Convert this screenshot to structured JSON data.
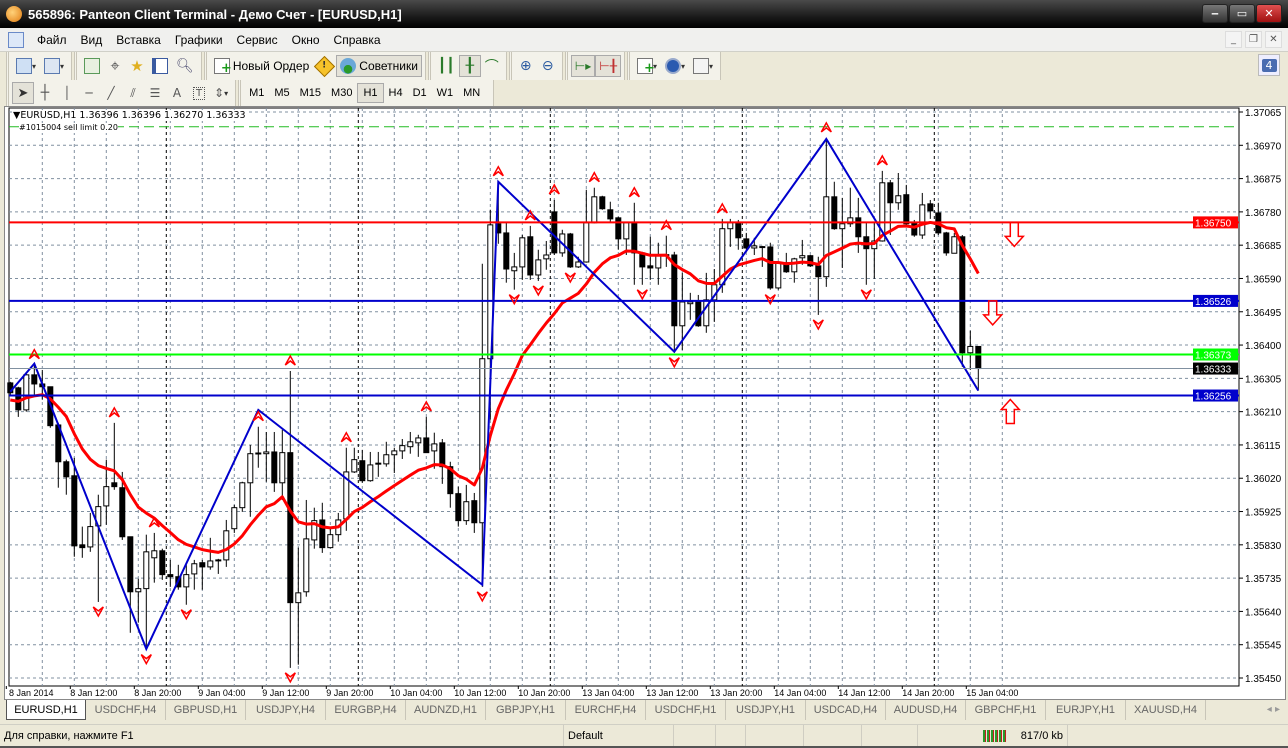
{
  "window": {
    "title": "565896: Panteon Client Terminal - Демо Счет - [EURUSD,H1]"
  },
  "menu": [
    "Файл",
    "Вид",
    "Вставка",
    "Графики",
    "Сервис",
    "Окно",
    "Справка"
  ],
  "toolbar": {
    "new_order": "Новый Ордер",
    "experts": "Советники",
    "notifications": "4",
    "timeframes": [
      "M1",
      "M5",
      "M15",
      "M30",
      "H1",
      "H4",
      "D1",
      "W1",
      "MN"
    ],
    "active_timeframe": "H1"
  },
  "chart": {
    "header": "EURUSD,H1  1.36396 1.36396 1.36270 1.36333",
    "order_label": "#1015004 sell limit 0.20",
    "symbol": "EURUSD",
    "timeframe": "H1",
    "colors": {
      "bull_body": "#ffffff",
      "bear_body": "#000000",
      "ma": "#ff0000",
      "zigzag": "#0000cc",
      "grid": "#8090a0",
      "fractal": "#ff0000"
    },
    "price_axis": [
      "1.37065",
      "1.36970",
      "1.36875",
      "1.36780",
      "1.36685",
      "1.36590",
      "1.36495",
      "1.36400",
      "1.36305",
      "1.36210",
      "1.36115",
      "1.36020",
      "1.35925",
      "1.35830",
      "1.35735",
      "1.35640",
      "1.35545",
      "1.35450"
    ],
    "price_range": [
      1.3545,
      1.37065
    ],
    "time_axis": [
      {
        "bar": 0,
        "label": "8 Jan 2014"
      },
      {
        "bar": 8,
        "label": "8 Jan 12:00"
      },
      {
        "bar": 16,
        "label": "8 Jan 20:00"
      },
      {
        "bar": 24,
        "label": "9 Jan 04:00"
      },
      {
        "bar": 32,
        "label": "9 Jan 12:00"
      },
      {
        "bar": 40,
        "label": "9 Jan 20:00"
      },
      {
        "bar": 48,
        "label": "10 Jan 04:00"
      },
      {
        "bar": 56,
        "label": "10 Jan 12:00"
      },
      {
        "bar": 64,
        "label": "10 Jan 20:00"
      },
      {
        "bar": 72,
        "label": "13 Jan 04:00"
      },
      {
        "bar": 80,
        "label": "13 Jan 12:00"
      },
      {
        "bar": 88,
        "label": "13 Jan 20:00"
      },
      {
        "bar": 96,
        "label": "14 Jan 04:00"
      },
      {
        "bar": 104,
        "label": "14 Jan 12:00"
      },
      {
        "bar": 112,
        "label": "14 Jan 20:00"
      },
      {
        "bar": 120,
        "label": "15 Jan 04:00"
      }
    ],
    "day_separators": [
      20,
      44,
      68,
      92,
      116
    ],
    "levels": [
      {
        "price": 1.3675,
        "label": "1.36750",
        "color": "#ff0000",
        "text": "#ffffff"
      },
      {
        "price": 1.36526,
        "label": "1.36526",
        "color": "#0000cc",
        "text": "#ffffff"
      },
      {
        "price": 1.36373,
        "label": "1.36373",
        "color": "#00ff00",
        "text": "#ffffff"
      },
      {
        "price": 1.36333,
        "label": "1.36333",
        "color": "#000000",
        "text": "#ffffff",
        "line": "#8090a0"
      },
      {
        "price": 1.36256,
        "label": "1.36256",
        "color": "#0000cc",
        "text": "#ffffff"
      }
    ],
    "order_line": {
      "price": 1.37023,
      "color": "#22bb22"
    },
    "ohlc": [
      [
        1.36292,
        1.36295,
        1.36258,
        1.36264
      ],
      [
        1.36278,
        1.36281,
        1.36195,
        1.36215
      ],
      [
        1.36215,
        1.36321,
        1.3621,
        1.36315
      ],
      [
        1.36315,
        1.36344,
        1.36258,
        1.36289
      ],
      [
        1.36289,
        1.36329,
        1.36244,
        1.36281
      ],
      [
        1.36281,
        1.36281,
        1.36164,
        1.3617
      ],
      [
        1.36172,
        1.36178,
        1.35993,
        1.36067
      ],
      [
        1.36067,
        1.36073,
        1.35973,
        1.36024
      ],
      [
        1.36027,
        1.36078,
        1.35796,
        1.35827
      ],
      [
        1.3583,
        1.35882,
        1.35793,
        1.35822
      ],
      [
        1.35824,
        1.35921,
        1.3581,
        1.35882
      ],
      [
        1.35884,
        1.35973,
        1.35667,
        1.35939
      ],
      [
        1.35941,
        1.36073,
        1.35887,
        1.35996
      ],
      [
        1.36007,
        1.36178,
        1.35987,
        1.35996
      ],
      [
        1.35993,
        1.36038,
        1.35844,
        1.35853
      ],
      [
        1.35853,
        1.35853,
        1.35579,
        1.35696
      ],
      [
        1.35696,
        1.35733,
        1.35608,
        1.35705
      ],
      [
        1.35705,
        1.35859,
        1.35531,
        1.3581
      ],
      [
        1.35793,
        1.35864,
        1.35722,
        1.35813
      ],
      [
        1.35813,
        1.35819,
        1.3573,
        1.35745
      ],
      [
        1.35745,
        1.35787,
        1.3571,
        1.35739
      ],
      [
        1.35739,
        1.35773,
        1.35702,
        1.3571
      ],
      [
        1.3571,
        1.35773,
        1.35659,
        1.35745
      ],
      [
        1.35747,
        1.35787,
        1.35702,
        1.35776
      ],
      [
        1.35779,
        1.35787,
        1.35702,
        1.35767
      ],
      [
        1.35767,
        1.3585,
        1.35759,
        1.35784
      ],
      [
        1.35787,
        1.3579,
        1.35747,
        1.35785
      ],
      [
        1.35787,
        1.35901,
        1.35767,
        1.3587
      ],
      [
        1.35876,
        1.35944,
        1.35864,
        1.35936
      ],
      [
        1.35936,
        1.3601,
        1.35924,
        1.36007
      ],
      [
        1.36007,
        1.36115,
        1.3591,
        1.3609
      ],
      [
        1.3609,
        1.36167,
        1.3605,
        1.36092
      ],
      [
        1.3609,
        1.36152,
        1.3601,
        1.36095
      ],
      [
        1.36095,
        1.36152,
        1.35981,
        1.36007
      ],
      [
        1.36007,
        1.36158,
        1.35958,
        1.36093
      ],
      [
        1.36093,
        1.36326,
        1.35479,
        1.35665
      ],
      [
        1.35665,
        1.35822,
        1.35488,
        1.35693
      ],
      [
        1.35696,
        1.35958,
        1.35682,
        1.35847
      ],
      [
        1.35844,
        1.35936,
        1.35819,
        1.35899
      ],
      [
        1.35901,
        1.3595,
        1.35807,
        1.35822
      ],
      [
        1.35822,
        1.35879,
        1.3582,
        1.35859
      ],
      [
        1.35859,
        1.35921,
        1.35839,
        1.35901
      ],
      [
        1.35904,
        1.36107,
        1.3587,
        1.36038
      ],
      [
        1.36038,
        1.36107,
        1.36035,
        1.36073
      ],
      [
        1.3607,
        1.36101,
        1.36007,
        1.36013
      ],
      [
        1.36013,
        1.36095,
        1.3601,
        1.36058
      ],
      [
        1.36061,
        1.36095,
        1.36024,
        1.36063
      ],
      [
        1.36061,
        1.36124,
        1.36053,
        1.36087
      ],
      [
        1.36087,
        1.36107,
        1.36035,
        1.36098
      ],
      [
        1.36098,
        1.36132,
        1.36075,
        1.36113
      ],
      [
        1.3611,
        1.36152,
        1.3609,
        1.36124
      ],
      [
        1.36121,
        1.36144,
        1.36081,
        1.36135
      ],
      [
        1.36135,
        1.36195,
        1.36092,
        1.36093
      ],
      [
        1.36098,
        1.3615,
        1.36047,
        1.36118
      ],
      [
        1.36121,
        1.36132,
        1.36004,
        1.36053
      ],
      [
        1.36053,
        1.36067,
        1.35936,
        1.35976
      ],
      [
        1.35976,
        1.35996,
        1.35882,
        1.35899
      ],
      [
        1.35899,
        1.36001,
        1.35887,
        1.35953
      ],
      [
        1.35956,
        1.35978,
        1.35864,
        1.35893
      ],
      [
        1.35893,
        1.36632,
        1.3571,
        1.36361
      ],
      [
        1.36361,
        1.36786,
        1.36187,
        1.36743
      ],
      [
        1.36746,
        1.36866,
        1.36689,
        1.3672
      ],
      [
        1.3672,
        1.36752,
        1.36578,
        1.36617
      ],
      [
        1.36612,
        1.36663,
        1.36558,
        1.36623
      ],
      [
        1.36623,
        1.36714,
        1.36586,
        1.36706
      ],
      [
        1.36709,
        1.3674,
        1.36586,
        1.366
      ],
      [
        1.366,
        1.36672,
        1.36583,
        1.36643
      ],
      [
        1.36646,
        1.36697,
        1.36615,
        1.36657
      ],
      [
        1.3678,
        1.36814,
        1.36657,
        1.36663
      ],
      [
        1.36663,
        1.36729,
        1.36652,
        1.36717
      ],
      [
        1.36717,
        1.3672,
        1.3662,
        1.36623
      ],
      [
        1.36623,
        1.36652,
        1.3662,
        1.36637
      ],
      [
        1.36637,
        1.36843,
        1.36635,
        1.36749
      ],
      [
        1.36749,
        1.36849,
        1.36747,
        1.36823
      ],
      [
        1.36823,
        1.36826,
        1.36786,
        1.36789
      ],
      [
        1.36786,
        1.36809,
        1.36752,
        1.3676
      ],
      [
        1.36763,
        1.36766,
        1.36672,
        1.36703
      ],
      [
        1.36703,
        1.3675,
        1.36657,
        1.36749
      ],
      [
        1.36749,
        1.36806,
        1.36572,
        1.36663
      ],
      [
        1.36663,
        1.36666,
        1.36572,
        1.36623
      ],
      [
        1.36626,
        1.36709,
        1.36586,
        1.3662
      ],
      [
        1.3662,
        1.36692,
        1.36572,
        1.36657
      ],
      [
        1.36657,
        1.36712,
        1.36623,
        1.36658
      ],
      [
        1.36657,
        1.36666,
        1.36378,
        1.36455
      ],
      [
        1.36455,
        1.36606,
        1.36386,
        1.36523
      ],
      [
        1.36518,
        1.36549,
        1.36472,
        1.36523
      ],
      [
        1.36523,
        1.36543,
        1.36452,
        1.36455
      ],
      [
        1.36455,
        1.36606,
        1.36435,
        1.36529
      ],
      [
        1.36529,
        1.36617,
        1.36466,
        1.36572
      ],
      [
        1.36572,
        1.3676,
        1.36549,
        1.36732
      ],
      [
        1.36732,
        1.3676,
        1.3668,
        1.36749
      ],
      [
        1.36749,
        1.36757,
        1.36672,
        1.36706
      ],
      [
        1.36703,
        1.3672,
        1.36672,
        1.36677
      ],
      [
        1.36677,
        1.36706,
        1.36657,
        1.36683
      ],
      [
        1.3668,
        1.36683,
        1.36623,
        1.36681
      ],
      [
        1.3668,
        1.36692,
        1.36558,
        1.36563
      ],
      [
        1.36563,
        1.36637,
        1.36558,
        1.36635
      ],
      [
        1.36635,
        1.36663,
        1.36606,
        1.36609
      ],
      [
        1.36609,
        1.36649,
        1.36578,
        1.36646
      ],
      [
        1.36649,
        1.367,
        1.36629,
        1.36655
      ],
      [
        1.36655,
        1.36657,
        1.36623,
        1.36626
      ],
      [
        1.36626,
        1.36652,
        1.36486,
        1.36595
      ],
      [
        1.36595,
        1.36991,
        1.36566,
        1.36823
      ],
      [
        1.36823,
        1.36866,
        1.36729,
        1.36732
      ],
      [
        1.36732,
        1.3682,
        1.3662,
        1.36746
      ],
      [
        1.36746,
        1.36849,
        1.36737,
        1.36763
      ],
      [
        1.36763,
        1.3682,
        1.36663,
        1.36709
      ],
      [
        1.36709,
        1.36752,
        1.36572,
        1.36675
      ],
      [
        1.36675,
        1.36752,
        1.36589,
        1.36697
      ],
      [
        1.36697,
        1.36897,
        1.36695,
        1.36863
      ],
      [
        1.36863,
        1.36871,
        1.36714,
        1.36806
      ],
      [
        1.36806,
        1.36891,
        1.36786,
        1.36826
      ],
      [
        1.36829,
        1.36857,
        1.36743,
        1.36746
      ],
      [
        1.36749,
        1.36757,
        1.36709,
        1.36714
      ],
      [
        1.36714,
        1.36834,
        1.36703,
        1.368
      ],
      [
        1.36803,
        1.36814,
        1.3676,
        1.36783
      ],
      [
        1.36777,
        1.36806,
        1.36714,
        1.3672
      ],
      [
        1.3672,
        1.36723,
        1.36655,
        1.36663
      ],
      [
        1.36662,
        1.3672,
        1.36662,
        1.36709
      ],
      [
        1.36709,
        1.36714,
        1.36338,
        1.36378
      ],
      [
        1.36378,
        1.36441,
        1.36329,
        1.36396
      ],
      [
        1.36396,
        1.36396,
        1.3627,
        1.36333
      ]
    ],
    "zigzag": [
      [
        0,
        1.36267
      ],
      [
        3,
        1.36347
      ],
      [
        17,
        1.35533
      ],
      [
        31,
        1.36215
      ],
      [
        59,
        1.35716
      ],
      [
        61,
        1.36866
      ],
      [
        83,
        1.36381
      ],
      [
        102,
        1.36988
      ],
      [
        121,
        1.3627
      ]
    ],
    "fractals_up": [
      3,
      13,
      18,
      31,
      35,
      42,
      52,
      61,
      65,
      68,
      73,
      78,
      82,
      89,
      102,
      109
    ],
    "fractals_down": [
      11,
      17,
      22,
      35,
      59,
      63,
      66,
      70,
      79,
      83,
      95,
      101,
      107
    ],
    "signal_arrows": [
      {
        "dir": "down",
        "bar": 125.5,
        "price": 1.3675
      },
      {
        "dir": "down",
        "bar": 122.8,
        "price": 1.36526
      },
      {
        "dir": "up",
        "bar": 125,
        "price": 1.36256
      }
    ]
  },
  "tabs": [
    "EURUSD,H1",
    "USDCHF,H4",
    "GBPUSD,H1",
    "USDJPY,H4",
    "EURGBP,H4",
    "AUDNZD,H1",
    "GBPJPY,H1",
    "EURCHF,H4",
    "USDCHF,H1",
    "USDJPY,H1",
    "USDCAD,H4",
    "AUDUSD,H4",
    "GBPCHF,H1",
    "EURJPY,H1",
    "XAUUSD,H4"
  ],
  "active_tab": 0,
  "status": {
    "help": "Для справки, нажмите F1",
    "profile": "Default",
    "traffic": "817/0 kb"
  }
}
